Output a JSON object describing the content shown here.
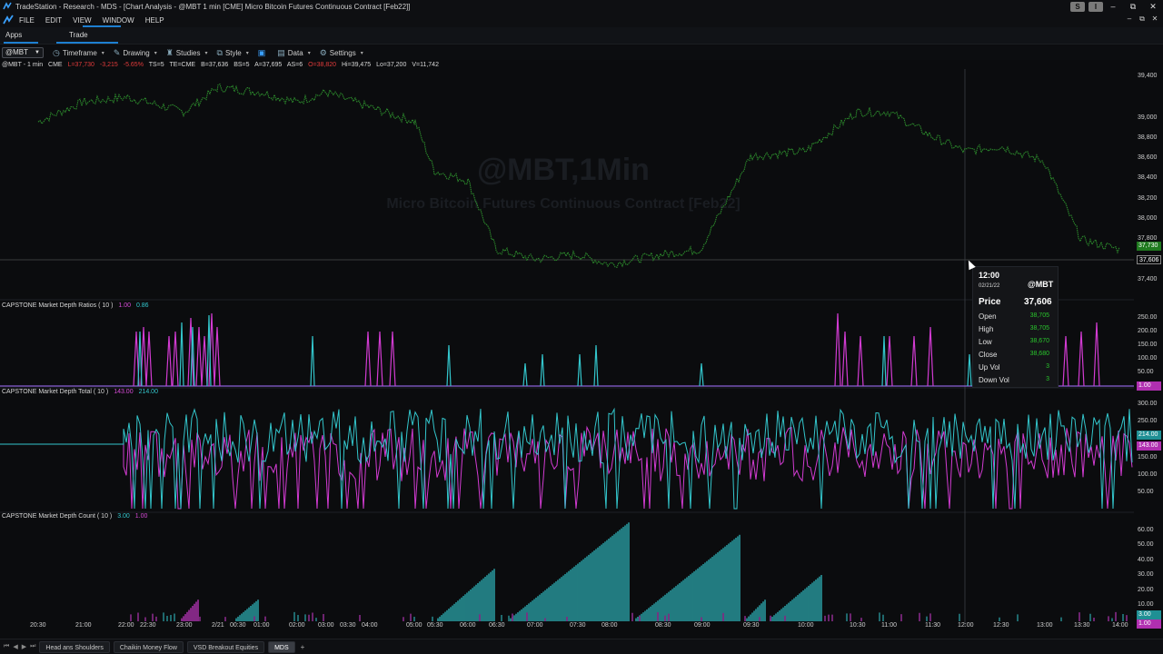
{
  "window": {
    "app_name": "TradeStation",
    "title": "TradeStation - Research - MDS - [Chart Analysis - @MBT 1 min [CME] Micro Bitcoin Futures Continuous Contract [Feb22]]",
    "sq_buttons": [
      "S",
      "I"
    ],
    "controls": [
      "–",
      "⧉",
      "✕"
    ]
  },
  "menu": {
    "items": [
      "FILE",
      "EDIT",
      "VIEW",
      "WINDOW",
      "HELP"
    ],
    "right_controls": [
      "–",
      "⧉",
      "✕"
    ]
  },
  "apps_bar": {
    "apps_label": "Apps",
    "trade_label": "Trade"
  },
  "toolbar": {
    "symbol": "@MBT",
    "buttons": [
      "Timeframe",
      "Drawing",
      "Studies",
      "Style",
      "Data",
      "Settings"
    ]
  },
  "info_line": {
    "symbol_interval": "@MBT - 1 min",
    "exchange": "CME",
    "last": "L=37,730",
    "net_change": "-3,215",
    "pct_change": "-5.65%",
    "ts": "TS=5",
    "te": "TE=CME",
    "bid": "B=37,636",
    "bs": "BS=5",
    "ask": "A=37,695",
    "as": "AS=6",
    "open": "O=38,820",
    "high": "Hi=39,475",
    "low": "Lo=37,200",
    "volume": "V=11,742"
  },
  "watermark": {
    "line1": "@MBT,1Min",
    "line2": "Micro Bitcoin Futures Continuous Contract [Feb22]"
  },
  "panels": {
    "ratios": {
      "label": "CAPSTONE Market Depth Ratios ( 10 )",
      "v1": "1.00",
      "v2": "0.86"
    },
    "total": {
      "label": "CAPSTONE Market Depth Total ( 10 )",
      "v1": "143.00",
      "v2": "214.00"
    },
    "count": {
      "label": "CAPSTONE Market Depth Count ( 10 )",
      "v1": "3.00",
      "v2": "1.00"
    }
  },
  "price_axis": {
    "labels": [
      "39,400",
      "39,000",
      "38,800",
      "38,600",
      "38,400",
      "38,200",
      "38,000",
      "37,800",
      "37,400"
    ],
    "last_price_tag": "37,606",
    "green_tag": "37,730"
  },
  "ratios_axis": {
    "labels": [
      "250.00",
      "200.00",
      "150.00",
      "100.00",
      "50.00"
    ],
    "tag": "1.00"
  },
  "total_axis": {
    "labels": [
      "300.00",
      "250.00",
      "200.00",
      "150.00",
      "100.00",
      "50.00"
    ],
    "tag1": "214.00",
    "tag2": "143.00"
  },
  "count_axis": {
    "labels": [
      "60.00",
      "50.00",
      "40.00",
      "30.00",
      "20.00",
      "10.00"
    ],
    "tag1": "3.00",
    "tag2": "1.00"
  },
  "time_axis": {
    "labels": [
      "20:30",
      "21:00",
      "22:00",
      "22:30",
      "23:00",
      "2/21",
      "00:30",
      "01:00",
      "02:00",
      "03:00",
      "03:30",
      "04:00",
      "05:00",
      "05:30",
      "06:00",
      "06:30",
      "07:00",
      "07:30",
      "08:00",
      "08:30",
      "09:00",
      "09:30",
      "10:00",
      "10:30",
      "11:00",
      "11:30",
      "12:00",
      "12:30",
      "13:00",
      "13:30",
      "14:00"
    ]
  },
  "tooltip": {
    "time": "12:00",
    "date": "02/21/22",
    "symbol": "@MBT",
    "price_label": "Price",
    "price_value": "37,606",
    "rows": [
      {
        "label": "Open",
        "value": "38,705"
      },
      {
        "label": "High",
        "value": "38,705"
      },
      {
        "label": "Low",
        "value": "38,670"
      },
      {
        "label": "Close",
        "value": "38,680"
      },
      {
        "label": "Up Vol",
        "value": "3"
      },
      {
        "label": "Down Vol",
        "value": "3"
      }
    ]
  },
  "bottom_tabs": {
    "tabs": [
      "Head ans Shoulders",
      "Chaikin Money Flow",
      "VSD Breakout Equities",
      "MDS"
    ],
    "active": "MDS",
    "plus": "+"
  },
  "colors": {
    "price_green": "#2c8a2c",
    "magenta": "#d23bd2",
    "cyan": "#33c6cc",
    "accent_blue": "#1d7fd1"
  },
  "chart_data": {
    "type": "line",
    "symbol": "@MBT",
    "interval": "1 min",
    "price_series_approx": {
      "x": [
        "20:30",
        "21:00",
        "22:00",
        "22:30",
        "23:00",
        "2/21",
        "01:00",
        "02:00",
        "03:00",
        "04:00",
        "05:00",
        "05:30",
        "06:00",
        "06:30",
        "07:00",
        "07:30",
        "08:00",
        "08:30",
        "09:00",
        "09:30",
        "10:00",
        "10:30",
        "11:00",
        "11:30",
        "12:00",
        "12:30",
        "13:00",
        "13:30",
        "14:00"
      ],
      "y": [
        39000,
        39200,
        39250,
        39200,
        39100,
        39350,
        39300,
        39200,
        39300,
        39150,
        39000,
        38500,
        38400,
        37700,
        37600,
        37650,
        37550,
        37650,
        37700,
        38650,
        38700,
        39100,
        39100,
        38850,
        38700,
        38750,
        38600,
        37800,
        37700
      ]
    },
    "ylim": [
      37300,
      39500
    ]
  }
}
